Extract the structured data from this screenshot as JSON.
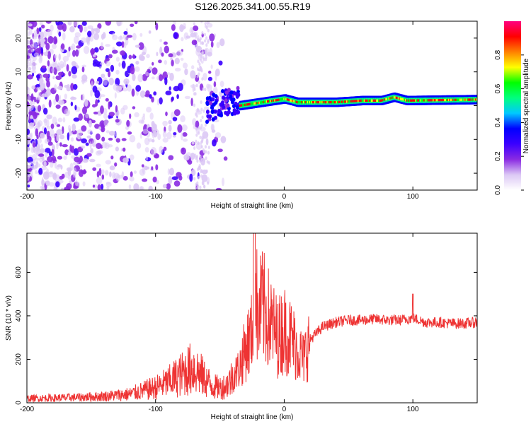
{
  "title": "S126.2025.341.00.55.R19",
  "spectrogram": {
    "type": "heatmap",
    "xlabel": "Height of straight line (km)",
    "ylabel": "Frequency (Hz)",
    "xlim": [
      -200,
      150
    ],
    "ylim": [
      -25,
      25
    ],
    "xticks": [
      -200,
      -100,
      0,
      100
    ],
    "yticks": [
      -20,
      -10,
      0,
      10,
      20
    ],
    "colorbar": {
      "label": "Normalized spectral amplitude",
      "range": [
        0,
        1
      ],
      "ticks": [
        "0.0",
        "0.2",
        "0.4",
        "0.6",
        "0.8"
      ],
      "colors": [
        "#ffffff",
        "#dcc8f5",
        "#8a2be2",
        "#3b00ff",
        "#0000ff",
        "#00c8ff",
        "#00ff80",
        "#00ff00",
        "#ffff00",
        "#ff8000",
        "#ff0000",
        "#ff0080"
      ]
    }
  },
  "snr": {
    "type": "line",
    "xlabel": "Height of straight line (km)",
    "ylabel": "SNR (10 * v/v)",
    "xlim": [
      -200,
      150
    ],
    "ylim": [
      0,
      780
    ],
    "xticks": [
      -200,
      -100,
      0,
      100
    ],
    "yticks": [
      0,
      200,
      400,
      600
    ],
    "line_color": "#ee3333",
    "x": [
      -200,
      -180,
      -160,
      -140,
      -120,
      -110,
      -100,
      -90,
      -80,
      -75,
      -70,
      -65,
      -60,
      -55,
      -50,
      -45,
      -40,
      -35,
      -30,
      -25,
      -23,
      -21,
      -20,
      -18,
      -15,
      -10,
      -5,
      0,
      5,
      10,
      15,
      20,
      30,
      40,
      50,
      60,
      70,
      80,
      90,
      100,
      110,
      120,
      130,
      140,
      150
    ],
    "values": [
      20,
      22,
      25,
      30,
      40,
      55,
      70,
      95,
      130,
      150,
      160,
      130,
      100,
      75,
      70,
      80,
      120,
      160,
      250,
      320,
      780,
      400,
      350,
      450,
      420,
      360,
      300,
      340,
      300,
      250,
      200,
      290,
      350,
      370,
      380,
      380,
      385,
      380,
      380,
      390,
      370,
      370,
      365,
      365,
      370
    ]
  }
}
